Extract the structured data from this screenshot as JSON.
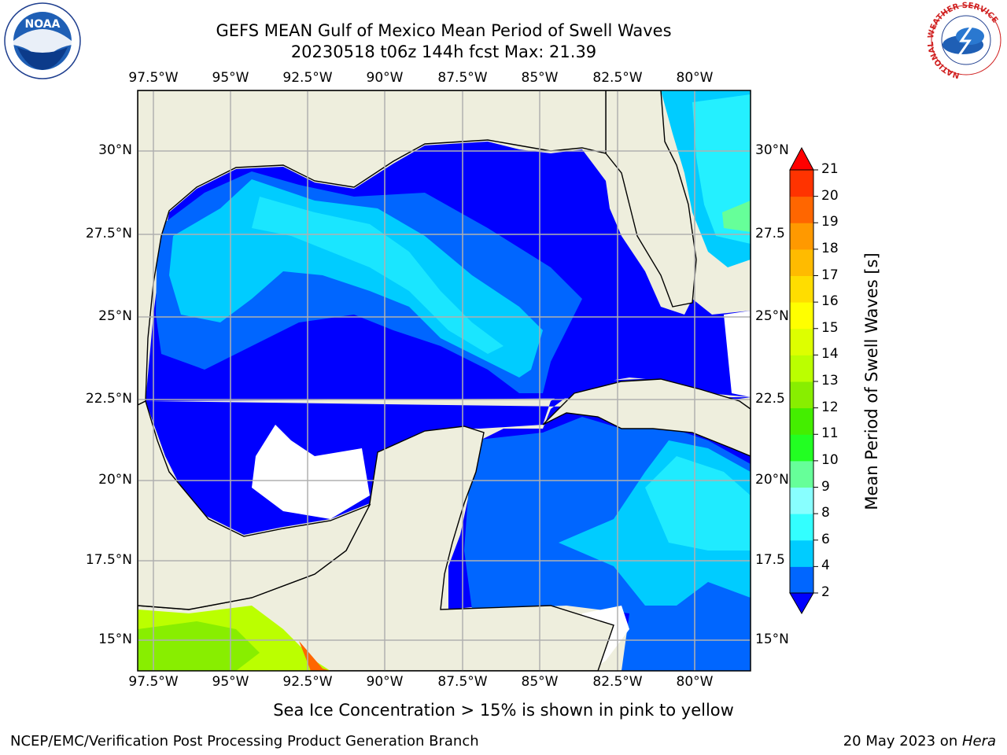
{
  "title": {
    "line1": "GEFS MEAN Gulf of Mexico Mean Period of Swell Waves",
    "line2": "20230518 t06z 144h fcst   Max: 21.39"
  },
  "map": {
    "lon_ticks": [
      "97.5°W",
      "95°W",
      "92.5°W",
      "90°W",
      "87.5°W",
      "85°W",
      "82.5°W",
      "80°W"
    ],
    "lat_ticks_left": [
      "30°N",
      "27.5°N",
      "25°N",
      "22.5°N",
      "20°N",
      "17.5°N",
      "15°N"
    ],
    "lat_ticks_right": [
      "30°N",
      "27.5",
      "25°N",
      "22.5",
      "20°N",
      "17.5",
      "15°N"
    ],
    "colors": {
      "land": "#eeeedd",
      "no_data": "#ffffff",
      "grid": "#b0b0b0",
      "coast": "#000000"
    }
  },
  "colorbar": {
    "label": "Mean Period of Swell Waves [s]",
    "ticks": [
      "2",
      "4",
      "6",
      "8",
      "9",
      "10",
      "11",
      "12",
      "13",
      "14",
      "15",
      "16",
      "17",
      "18",
      "19",
      "20",
      "21"
    ],
    "colors": [
      "#0000ff",
      "#0066ff",
      "#00ccff",
      "#33ffff",
      "#88ffff",
      "#66ff99",
      "#22ff22",
      "#44ee00",
      "#88ee00",
      "#bbff00",
      "#ddff00",
      "#ffff00",
      "#ffdd00",
      "#ffbb00",
      "#ff9900",
      "#ff6600",
      "#ff3300",
      "#ff0000"
    ]
  },
  "note": "Sea Ice Concentration > 15% is shown in pink to yellow",
  "footer": {
    "left": "NCEP/EMC/Verification Post Processing Product Generation Branch",
    "date": "20 May 2023 on ",
    "machine": "Hera"
  },
  "logos": {
    "left_text": "NOAA",
    "right_ring_text": "NATIONAL WEATHER SERVICE"
  }
}
